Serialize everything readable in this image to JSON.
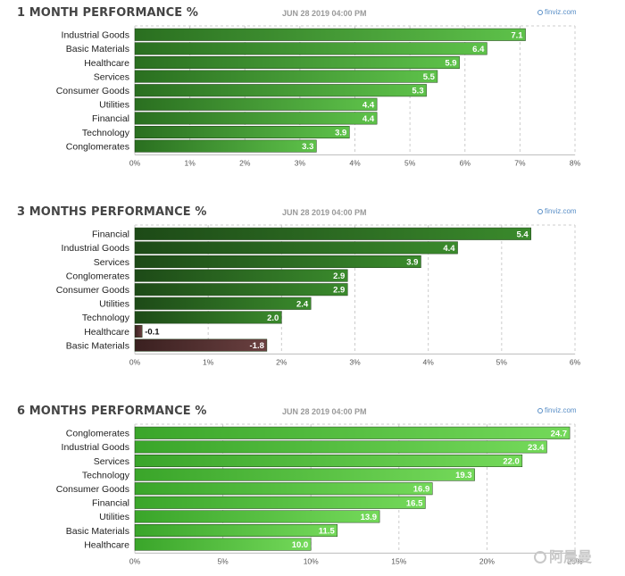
{
  "date": "JUN 28 2019 04:00 PM",
  "brand": "finviz.com",
  "watermark": "阿晨曼",
  "colors": {
    "pos1": [
      "#2a6f20",
      "#5ec24a"
    ],
    "pos3": [
      "#1d4a17",
      "#3a8a2c"
    ],
    "pos6": [
      "#3aa52a",
      "#74d95a"
    ],
    "neg": [
      "#3a2020",
      "#6a4040"
    ],
    "grid": "#cccccc"
  },
  "chart_data": [
    {
      "type": "bar",
      "orientation": "horizontal",
      "title": "1 MONTH PERFORMANCE %",
      "categories": [
        "Industrial Goods",
        "Basic Materials",
        "Healthcare",
        "Services",
        "Consumer Goods",
        "Utilities",
        "Financial",
        "Technology",
        "Conglomerates"
      ],
      "values": [
        7.1,
        6.4,
        5.9,
        5.5,
        5.3,
        4.4,
        4.4,
        3.9,
        3.3
      ],
      "value_labels": [
        "7.1",
        "6.4",
        "5.9",
        "5.5",
        "5.3",
        "4.4",
        "4.4",
        "3.9",
        "3.3"
      ],
      "xlim": [
        0,
        8
      ],
      "ticks": [
        0,
        1,
        2,
        3,
        4,
        5,
        6,
        7,
        8
      ],
      "tick_labels": [
        "0%",
        "1%",
        "2%",
        "3%",
        "4%",
        "5%",
        "6%",
        "7%",
        "8%"
      ],
      "grid": true,
      "palette": "pos1"
    },
    {
      "type": "bar",
      "orientation": "horizontal",
      "title": "3 MONTHS PERFORMANCE %",
      "categories": [
        "Financial",
        "Industrial Goods",
        "Services",
        "Conglomerates",
        "Consumer Goods",
        "Utilities",
        "Technology",
        "Healthcare",
        "Basic Materials"
      ],
      "values": [
        5.4,
        4.4,
        3.9,
        2.9,
        2.9,
        2.4,
        2.0,
        -0.1,
        -1.8
      ],
      "value_labels": [
        "5.4",
        "4.4",
        "3.9",
        "2.9",
        "2.9",
        "2.4",
        "2.0",
        "-0.1",
        "-1.8"
      ],
      "xlim": [
        0,
        6
      ],
      "ticks": [
        0,
        1,
        2,
        3,
        4,
        5,
        6
      ],
      "tick_labels": [
        "0%",
        "1%",
        "2%",
        "3%",
        "4%",
        "5%",
        "6%"
      ],
      "grid": true,
      "palette": "pos3"
    },
    {
      "type": "bar",
      "orientation": "horizontal",
      "title": "6 MONTHS PERFORMANCE %",
      "categories": [
        "Conglomerates",
        "Industrial Goods",
        "Services",
        "Technology",
        "Consumer Goods",
        "Financial",
        "Utilities",
        "Basic Materials",
        "Healthcare"
      ],
      "values": [
        24.7,
        23.4,
        22.0,
        19.3,
        16.9,
        16.5,
        13.9,
        11.5,
        10.0
      ],
      "value_labels": [
        "24.7",
        "23.4",
        "22.0",
        "19.3",
        "16.9",
        "16.5",
        "13.9",
        "11.5",
        "10.0"
      ],
      "xlim": [
        0,
        25
      ],
      "ticks": [
        0,
        5,
        10,
        15,
        20,
        25
      ],
      "tick_labels": [
        "0%",
        "5%",
        "10%",
        "15%",
        "20%",
        "25%"
      ],
      "grid": true,
      "palette": "pos6"
    }
  ]
}
